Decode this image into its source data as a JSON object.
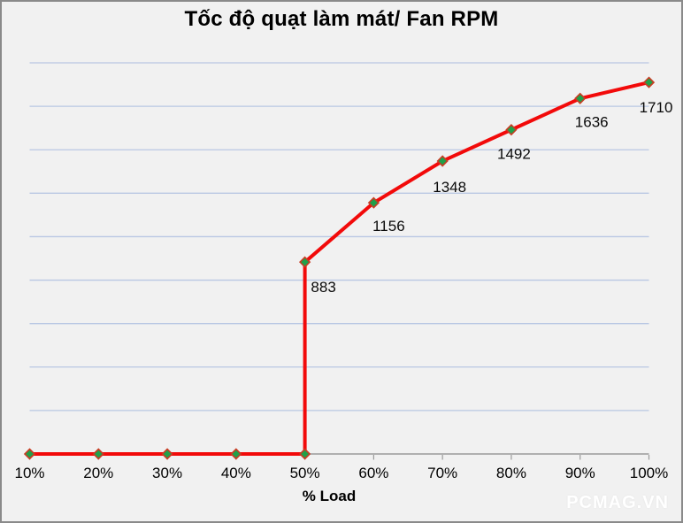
{
  "title": "Tốc độ quạt làm mát/ Fan RPM",
  "watermark": "PCMAG.VN",
  "chart_data": {
    "type": "line",
    "title": "Tốc độ quạt làm mát/ Fan RPM",
    "xlabel": "% Load",
    "ylabel": "",
    "x_categories": [
      "10%",
      "20%",
      "30%",
      "40%",
      "50%",
      "60%",
      "70%",
      "80%",
      "90%",
      "100%"
    ],
    "series": [
      {
        "name": "Fan RPM",
        "points": [
          {
            "x": "10%",
            "y": 0
          },
          {
            "x": "20%",
            "y": 0
          },
          {
            "x": "30%",
            "y": 0
          },
          {
            "x": "40%",
            "y": 0
          },
          {
            "x": "50%",
            "y": 0
          },
          {
            "x": "50%",
            "y": 883,
            "label": "883",
            "label_dx": 21,
            "label_dy": 34
          },
          {
            "x": "60%",
            "y": 1156,
            "label": "1156",
            "label_dx": 17,
            "label_dy": 32
          },
          {
            "x": "70%",
            "y": 1348,
            "label": "1348",
            "label_dx": 8,
            "label_dy": 35
          },
          {
            "x": "80%",
            "y": 1492,
            "label": "1492",
            "label_dx": 3,
            "label_dy": 33
          },
          {
            "x": "90%",
            "y": 1636,
            "label": "1636",
            "label_dx": 13,
            "label_dy": 32
          },
          {
            "x": "100%",
            "y": 1710,
            "label": "1710",
            "label_dx": 8,
            "label_dy": 34
          }
        ]
      }
    ],
    "ylim": [
      0,
      1800
    ],
    "y_grid_step": 200,
    "grid": true,
    "legend": false,
    "y_axis_labels_visible": false,
    "colors": {
      "line": "#F20A0A",
      "marker_fill": "#20A04A",
      "marker_stroke": "#C83C23",
      "gridline": "#B9C7E3",
      "axis_line": "#9B9B9B",
      "tick_label": "#000000",
      "data_label": "#0A0A0A",
      "background": "#F1F1F1",
      "border": "#8A8A8A",
      "title_color": "#000000",
      "watermark_color": "#FFFFFF"
    }
  }
}
